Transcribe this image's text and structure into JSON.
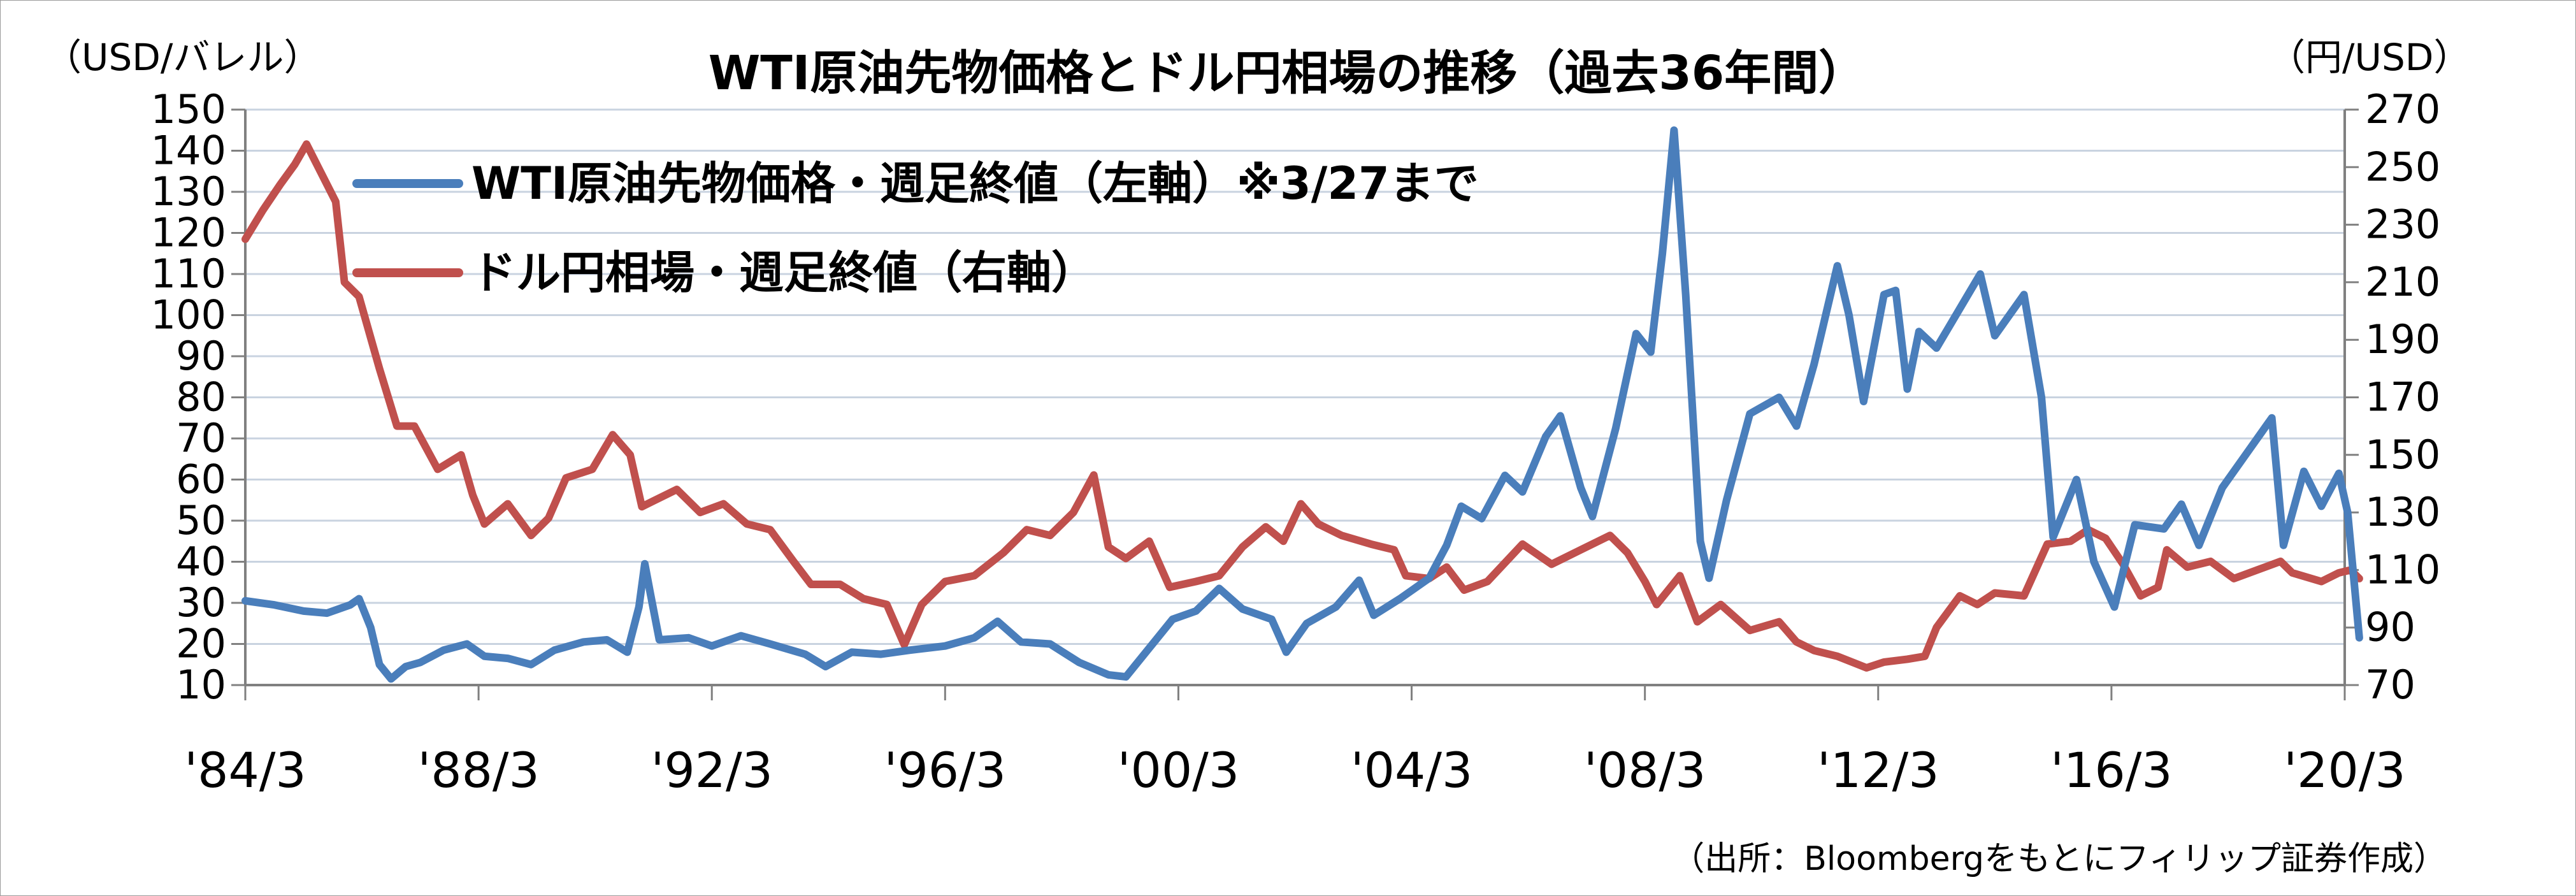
{
  "chart_data": {
    "type": "line",
    "title": "WTI原油先物価格とドル円相場の推移（過去36年間）",
    "left_unit": "（USD/バレル）",
    "right_unit": "（円/USD）",
    "source": "（出所：Bloombergをもとにフィリップ証券作成）",
    "x_ticks": [
      "'84/3",
      "'88/3",
      "'92/3",
      "'96/3",
      "'00/3",
      "'04/3",
      "'08/3",
      "'12/3",
      "'16/3",
      "'20/3"
    ],
    "x_range": [
      1984.0,
      2020.0
    ],
    "y_left": {
      "min": 10,
      "max": 150,
      "step": 10
    },
    "y_right": {
      "min": 70,
      "max": 270,
      "step": 20
    },
    "grid": "horizontal",
    "legend_position": "top-left",
    "series": [
      {
        "name": "WTI原油先物価格・週足終値（左軸）※3/27まで",
        "axis": "left",
        "color": "#4a7ebb",
        "points": [
          [
            1984.0,
            30.5
          ],
          [
            1984.5,
            29.5
          ],
          [
            1985.0,
            28.0
          ],
          [
            1985.4,
            27.5
          ],
          [
            1985.8,
            29.5
          ],
          [
            1985.95,
            31.0
          ],
          [
            1986.15,
            24.0
          ],
          [
            1986.3,
            15.0
          ],
          [
            1986.5,
            11.5
          ],
          [
            1986.75,
            14.5
          ],
          [
            1987.0,
            15.5
          ],
          [
            1987.4,
            18.5
          ],
          [
            1987.8,
            20.0
          ],
          [
            1988.1,
            17.0
          ],
          [
            1988.5,
            16.5
          ],
          [
            1988.9,
            15.0
          ],
          [
            1989.3,
            18.5
          ],
          [
            1989.8,
            20.5
          ],
          [
            1990.2,
            21.0
          ],
          [
            1990.55,
            18.0
          ],
          [
            1990.75,
            29.0
          ],
          [
            1990.85,
            39.5
          ],
          [
            1990.95,
            32.0
          ],
          [
            1991.1,
            21.0
          ],
          [
            1991.6,
            21.5
          ],
          [
            1992.0,
            19.5
          ],
          [
            1992.5,
            22.0
          ],
          [
            1993.0,
            20.0
          ],
          [
            1993.6,
            17.5
          ],
          [
            1993.95,
            14.5
          ],
          [
            1994.4,
            18.0
          ],
          [
            1994.9,
            17.5
          ],
          [
            1995.4,
            18.5
          ],
          [
            1996.0,
            19.5
          ],
          [
            1996.5,
            21.5
          ],
          [
            1996.9,
            25.5
          ],
          [
            1997.3,
            20.5
          ],
          [
            1997.8,
            20.0
          ],
          [
            1998.3,
            15.5
          ],
          [
            1998.8,
            12.5
          ],
          [
            1999.1,
            12.0
          ],
          [
            1999.5,
            19.0
          ],
          [
            1999.9,
            26.0
          ],
          [
            2000.3,
            28.0
          ],
          [
            2000.7,
            33.5
          ],
          [
            2001.1,
            28.5
          ],
          [
            2001.6,
            26.0
          ],
          [
            2001.85,
            18.0
          ],
          [
            2002.2,
            25.0
          ],
          [
            2002.7,
            29.0
          ],
          [
            2003.1,
            35.5
          ],
          [
            2003.35,
            27.0
          ],
          [
            2003.8,
            31.0
          ],
          [
            2004.3,
            36.0
          ],
          [
            2004.6,
            44.0
          ],
          [
            2004.85,
            53.5
          ],
          [
            2005.2,
            50.5
          ],
          [
            2005.6,
            61.0
          ],
          [
            2005.9,
            57.0
          ],
          [
            2006.3,
            70.5
          ],
          [
            2006.55,
            75.5
          ],
          [
            2006.9,
            58.0
          ],
          [
            2007.1,
            51.0
          ],
          [
            2007.5,
            72.5
          ],
          [
            2007.85,
            95.5
          ],
          [
            2008.1,
            91.0
          ],
          [
            2008.3,
            115.0
          ],
          [
            2008.5,
            145.0
          ],
          [
            2008.7,
            105.0
          ],
          [
            2008.95,
            45.0
          ],
          [
            2009.1,
            36.0
          ],
          [
            2009.4,
            55.0
          ],
          [
            2009.8,
            76.0
          ],
          [
            2010.3,
            80.0
          ],
          [
            2010.6,
            73.0
          ],
          [
            2010.9,
            88.0
          ],
          [
            2011.3,
            112.0
          ],
          [
            2011.5,
            100.0
          ],
          [
            2011.75,
            79.0
          ],
          [
            2012.1,
            105.0
          ],
          [
            2012.3,
            106.0
          ],
          [
            2012.5,
            82.0
          ],
          [
            2012.7,
            96.0
          ],
          [
            2013.0,
            92.0
          ],
          [
            2013.5,
            104.0
          ],
          [
            2013.75,
            110.0
          ],
          [
            2014.0,
            95.0
          ],
          [
            2014.5,
            105.0
          ],
          [
            2014.8,
            80.0
          ],
          [
            2015.0,
            46.0
          ],
          [
            2015.4,
            60.0
          ],
          [
            2015.7,
            40.0
          ],
          [
            2016.05,
            29.0
          ],
          [
            2016.4,
            49.0
          ],
          [
            2016.9,
            48.0
          ],
          [
            2017.2,
            54.0
          ],
          [
            2017.5,
            44.0
          ],
          [
            2017.9,
            58.0
          ],
          [
            2018.3,
            66.0
          ],
          [
            2018.75,
            75.0
          ],
          [
            2018.95,
            44.0
          ],
          [
            2019.3,
            62.0
          ],
          [
            2019.6,
            53.5
          ],
          [
            2019.9,
            61.5
          ],
          [
            2020.05,
            52.0
          ],
          [
            2020.25,
            21.5
          ]
        ]
      },
      {
        "name": "ドル円相場・週足終値（右軸）",
        "axis": "right",
        "color": "#c0504d",
        "points": [
          [
            1984.0,
            225.0
          ],
          [
            1984.3,
            235.0
          ],
          [
            1984.6,
            244.0
          ],
          [
            1984.85,
            251.0
          ],
          [
            1985.05,
            258.0
          ],
          [
            1985.25,
            250.0
          ],
          [
            1985.55,
            238.0
          ],
          [
            1985.7,
            210.0
          ],
          [
            1985.95,
            205.0
          ],
          [
            1986.3,
            180.0
          ],
          [
            1986.6,
            160.0
          ],
          [
            1986.9,
            160.0
          ],
          [
            1987.3,
            145.0
          ],
          [
            1987.7,
            150.0
          ],
          [
            1987.9,
            136.0
          ],
          [
            1988.1,
            126.0
          ],
          [
            1988.5,
            133.0
          ],
          [
            1988.9,
            122.0
          ],
          [
            1989.2,
            128.0
          ],
          [
            1989.5,
            142.0
          ],
          [
            1989.95,
            145.0
          ],
          [
            1990.3,
            157.0
          ],
          [
            1990.6,
            150.0
          ],
          [
            1990.8,
            132.0
          ],
          [
            1991.0,
            134.0
          ],
          [
            1991.4,
            138.0
          ],
          [
            1991.8,
            130.0
          ],
          [
            1992.2,
            133.0
          ],
          [
            1992.6,
            126.0
          ],
          [
            1993.0,
            124.0
          ],
          [
            1993.4,
            113.0
          ],
          [
            1993.7,
            105.0
          ],
          [
            1994.2,
            105.0
          ],
          [
            1994.6,
            100.0
          ],
          [
            1995.0,
            98.0
          ],
          [
            1995.3,
            84.0
          ],
          [
            1995.6,
            98.0
          ],
          [
            1996.0,
            106.0
          ],
          [
            1996.5,
            108.0
          ],
          [
            1997.0,
            116.0
          ],
          [
            1997.4,
            124.0
          ],
          [
            1997.8,
            122.0
          ],
          [
            1998.2,
            130.0
          ],
          [
            1998.55,
            143.0
          ],
          [
            1998.8,
            118.0
          ],
          [
            1999.1,
            114.0
          ],
          [
            1999.5,
            120.0
          ],
          [
            1999.85,
            104.0
          ],
          [
            2000.3,
            106.0
          ],
          [
            2000.7,
            108.0
          ],
          [
            2001.1,
            118.0
          ],
          [
            2001.5,
            125.0
          ],
          [
            2001.8,
            120.0
          ],
          [
            2002.1,
            133.0
          ],
          [
            2002.4,
            126.0
          ],
          [
            2002.8,
            122.0
          ],
          [
            2003.3,
            119.0
          ],
          [
            2003.7,
            117.0
          ],
          [
            2003.9,
            108.0
          ],
          [
            2004.3,
            107.0
          ],
          [
            2004.6,
            111.0
          ],
          [
            2004.9,
            103.0
          ],
          [
            2005.3,
            106.0
          ],
          [
            2005.9,
            119.0
          ],
          [
            2006.4,
            112.0
          ],
          [
            2006.9,
            117.0
          ],
          [
            2007.4,
            122.0
          ],
          [
            2007.7,
            116.0
          ],
          [
            2008.0,
            106.0
          ],
          [
            2008.2,
            98.0
          ],
          [
            2008.6,
            108.0
          ],
          [
            2008.9,
            92.0
          ],
          [
            2009.3,
            98.0
          ],
          [
            2009.8,
            89.0
          ],
          [
            2010.3,
            92.0
          ],
          [
            2010.6,
            85.0
          ],
          [
            2010.9,
            82.0
          ],
          [
            2011.3,
            80.0
          ],
          [
            2011.8,
            76.0
          ],
          [
            2012.1,
            78.0
          ],
          [
            2012.5,
            79.0
          ],
          [
            2012.8,
            80.0
          ],
          [
            2013.0,
            90.0
          ],
          [
            2013.4,
            101.0
          ],
          [
            2013.7,
            98.0
          ],
          [
            2014.0,
            102.0
          ],
          [
            2014.5,
            101.0
          ],
          [
            2014.9,
            119.0
          ],
          [
            2015.3,
            120.0
          ],
          [
            2015.6,
            124.0
          ],
          [
            2015.9,
            121.0
          ],
          [
            2016.2,
            112.0
          ],
          [
            2016.5,
            101.0
          ],
          [
            2016.8,
            104.0
          ],
          [
            2016.95,
            117.0
          ],
          [
            2017.3,
            111.0
          ],
          [
            2017.7,
            113.0
          ],
          [
            2018.1,
            107.0
          ],
          [
            2018.5,
            110.0
          ],
          [
            2018.9,
            113.0
          ],
          [
            2019.1,
            109.0
          ],
          [
            2019.6,
            106.0
          ],
          [
            2019.9,
            109.0
          ],
          [
            2020.1,
            110.0
          ],
          [
            2020.25,
            107.0
          ]
        ]
      }
    ]
  }
}
